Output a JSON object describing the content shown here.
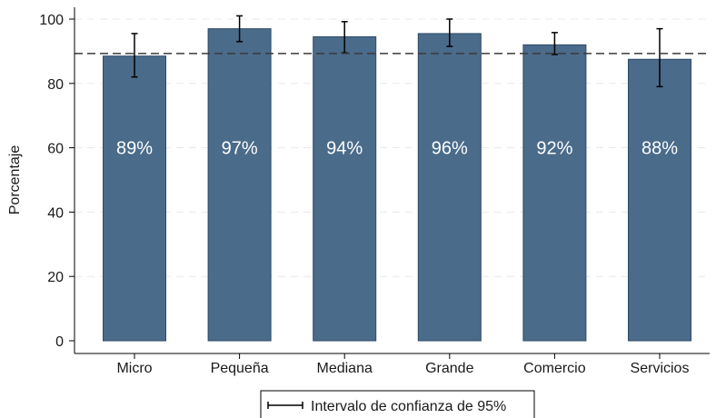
{
  "chart_data": {
    "type": "bar",
    "categories": [
      "Micro",
      "Pequeña",
      "Mediana",
      "Grande",
      "Comercio",
      "Servicios"
    ],
    "values": [
      88.5,
      97,
      94.5,
      95.5,
      92,
      87.5
    ],
    "value_labels": [
      "89%",
      "97%",
      "94%",
      "96%",
      "92%",
      "88%"
    ],
    "ci_lower": [
      82,
      93,
      89.5,
      91.5,
      89,
      79
    ],
    "ci_upper": [
      95.5,
      101,
      99.2,
      100,
      95.8,
      97
    ],
    "reference_line": 89.3,
    "ylabel": "Porcentaje",
    "xlabel": "",
    "ylim": [
      0,
      100
    ],
    "yticks": [
      0,
      20,
      40,
      60,
      80,
      100
    ],
    "grid": true,
    "legend": {
      "label": "Intervalo de confianza de 95%",
      "position": "bottom-center"
    },
    "colors": {
      "bar": "#4a6b8a",
      "bar_edge": "#2f4b66",
      "errorbar": "#000000",
      "refline": "#3a3a3a",
      "grid": "#e8e8e8"
    }
  }
}
